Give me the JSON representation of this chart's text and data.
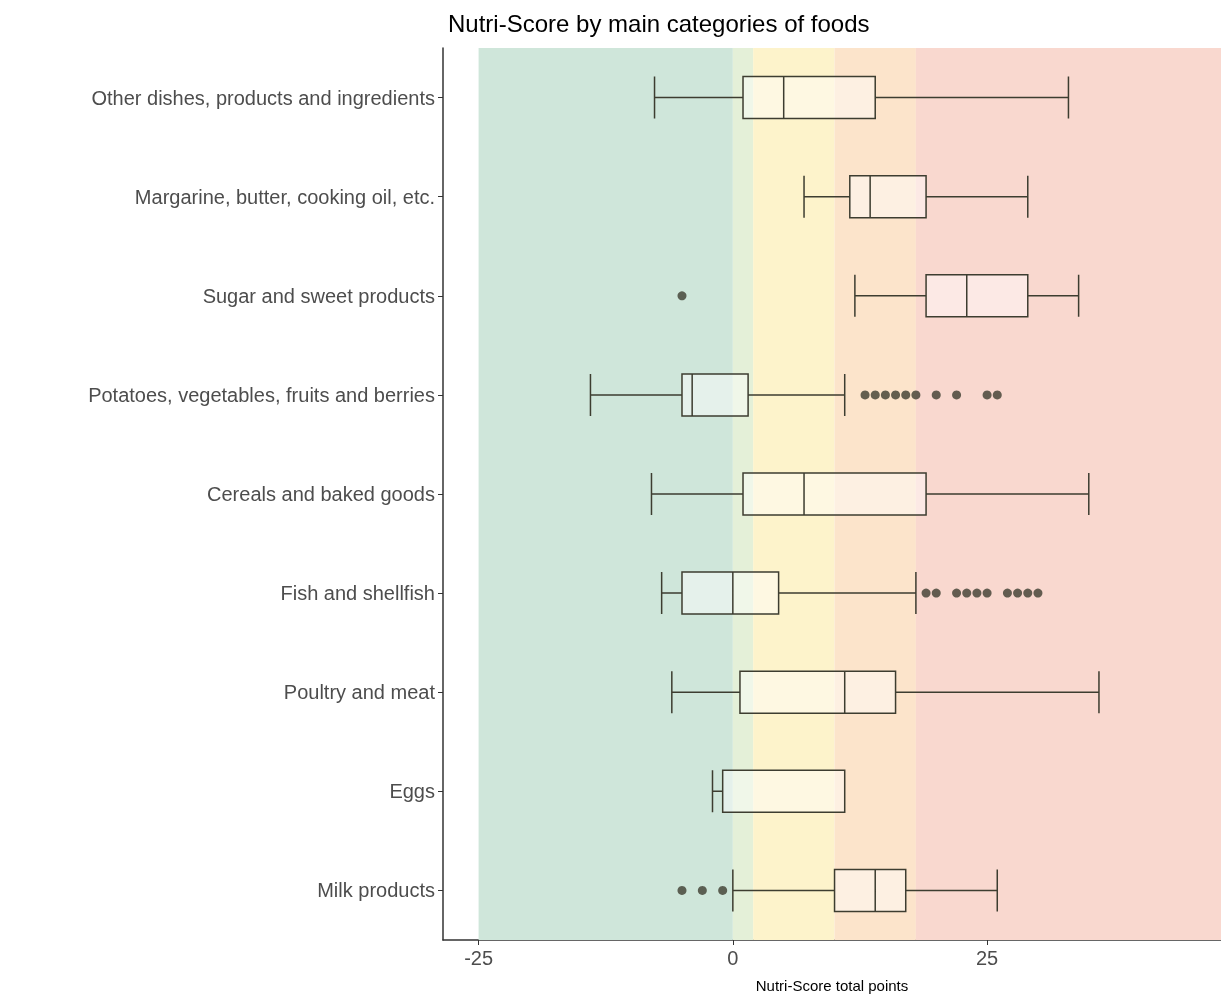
{
  "chart_data": {
    "type": "box",
    "title": "Nutri-Score by main categories of foods",
    "xlabel": "Nutri-Score total points",
    "orientation": "horizontal",
    "categories": [
      "Other dishes, products and ingredients",
      "Margarine, butter, cooking oil, etc.",
      "Sugar and sweet products",
      "Potatoes, vegetables, fruits and berries",
      "Cereals and baked goods",
      "Fish and shellfish",
      "Poultry and meat",
      "Eggs",
      "Milk products"
    ],
    "color": "#3d3d30",
    "boxes": [
      {
        "low": -7.7,
        "q1": 1,
        "median": 5,
        "q3": 14,
        "high": 33
      },
      {
        "low": 7,
        "q1": 11.5,
        "median": 13.5,
        "q3": 19,
        "high": 29
      },
      {
        "low": 12,
        "q1": 19,
        "median": 23,
        "q3": 29,
        "high": 34,
        "outliers": [
          -5
        ]
      },
      {
        "low": -14,
        "q1": -5,
        "median": -4,
        "q3": 1.5,
        "high": 11,
        "outliers": [
          13,
          14,
          15,
          16,
          17,
          18,
          20,
          22,
          25,
          26
        ]
      },
      {
        "low": -8,
        "q1": 1,
        "median": 7,
        "q3": 19,
        "high": 35
      },
      {
        "low": -7,
        "q1": -5,
        "median": 0,
        "q3": 4.5,
        "high": 18,
        "outliers": [
          19,
          20,
          22,
          23,
          24,
          25,
          27,
          28,
          29,
          30
        ]
      },
      {
        "low": -6,
        "q1": 0.7,
        "median": 11,
        "q3": 16,
        "high": 36
      },
      {
        "low": -2,
        "q1": -1,
        "median": -1,
        "q3": 11,
        "high": 11
      },
      {
        "low": 0,
        "q1": 10,
        "median": 14,
        "q3": 17,
        "high": 26,
        "outliers": [
          -5,
          -3,
          -1
        ]
      }
    ],
    "xlim": [
      -28.5,
      48
    ],
    "xticks": [
      -25,
      0,
      25
    ],
    "grid": false,
    "bands": [
      {
        "axis": "x",
        "from": -25,
        "to": 0,
        "color": "#cfe6da"
      },
      {
        "axis": "x",
        "from": 0,
        "to": 2,
        "color": "#e4f0d8"
      },
      {
        "axis": "x",
        "from": 2,
        "to": 10,
        "color": "#fdf3cb"
      },
      {
        "axis": "x",
        "from": 10,
        "to": 18,
        "color": "#fce4cb"
      },
      {
        "axis": "x",
        "from": 18,
        "to": 48,
        "color": "#f9d8cf"
      }
    ]
  }
}
